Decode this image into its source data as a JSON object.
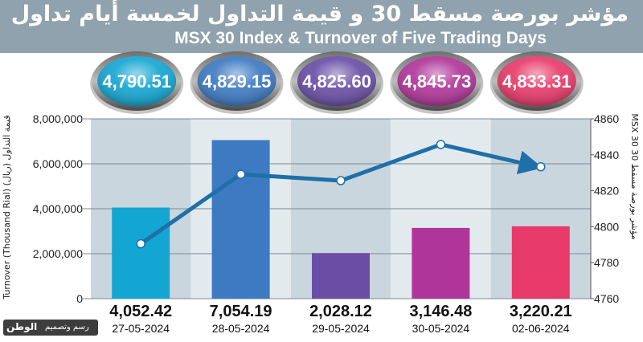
{
  "header": {
    "title_ar": "مؤشر بورصة مسقط 30 و قيمة التداول لخمسة أيام تداول",
    "title_en": "MSX 30 Index & Turnover of Five Trading Days"
  },
  "credit": {
    "logo": "الوطن",
    "label": "رسم وتصميم"
  },
  "colors": {
    "header_bg": "#8fa2ad",
    "bars": [
      "#14a6d2",
      "#3d7ac2",
      "#6a4ea6",
      "#b0359a",
      "#e83a6a"
    ],
    "line": "#1f6fa8",
    "band_dark": "#c9d6de",
    "band_light": "#e3eaee"
  },
  "chart_data": {
    "type": "bar",
    "categories": [
      "27-05-2024",
      "28-05-2024",
      "29-05-2024",
      "30-05-2024",
      "02-06-2024"
    ],
    "series": [
      {
        "values": [
          4052.42,
          7054.19,
          2028.12,
          3146.48,
          3220.21
        ]
      },
      {
        "values": [
          4790.51,
          4829.15,
          4825.6,
          4845.73,
          4833.31
        ]
      }
    ],
    "bar_labels": [
      "4,052.42",
      "7,054.19",
      "2,028.12",
      "3,146.48",
      "3,220.21"
    ],
    "index_labels": [
      "4,790.51",
      "4,829.15",
      "4,825.60",
      "4,845.73",
      "4,833.31"
    ],
    "ylabel_left": "Turnover (Thousand Rial)  قيمة التداول (ريال)",
    "ylabel_right": "MSX 30  مؤشر بورصة مسقط 30",
    "ylim_left": [
      0,
      8000000
    ],
    "ylim_right": [
      4760,
      4860
    ],
    "yticks_left": [
      "0",
      "2,000,000",
      "4,000,000",
      "6,000,000",
      "8,000,000"
    ],
    "yticks_right": [
      "4760",
      "4780",
      "4800",
      "4820",
      "4840",
      "4860"
    ],
    "left_tick_values": [
      0,
      2000000,
      4000000,
      6000000,
      8000000
    ],
    "right_tick_values": [
      4760,
      4780,
      4800,
      4820,
      4840,
      4860
    ],
    "bar_scale": 1000,
    "grid": true
  }
}
